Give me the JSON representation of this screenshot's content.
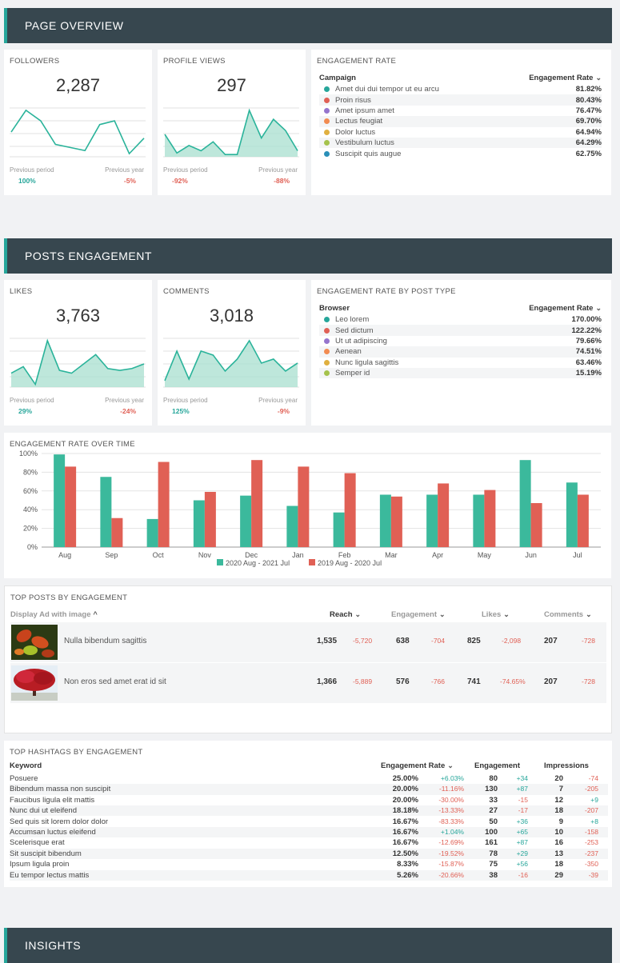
{
  "sections": {
    "page_overview": "PAGE OVERVIEW",
    "posts_engagement": "POSTS ENGAGEMENT",
    "insights": "INSIGHTS"
  },
  "followers": {
    "title": "FOLLOWERS",
    "value": "2,287",
    "prev_label": "Previous period",
    "prev_value": "100%",
    "year_label": "Previous year",
    "year_value": "-5%",
    "series": [
      40,
      75,
      58,
      20,
      15,
      10,
      52,
      58,
      5,
      30
    ]
  },
  "profile_views": {
    "title": "PROFILE VIEWS",
    "value": "297",
    "prev_label": "Previous period",
    "prev_value": "-92%",
    "year_label": "Previous year",
    "year_value": "-88%",
    "series": [
      30,
      5,
      15,
      8,
      20,
      3,
      3,
      62,
      25,
      50,
      35,
      8
    ]
  },
  "engagement_rate": {
    "title": "ENGAGEMENT RATE",
    "col1": "Campaign",
    "col2": "Engagement Rate",
    "rows": [
      {
        "name": "Amet dui dui tempor ut eu arcu",
        "value": "81.82%",
        "color": "#26a69a"
      },
      {
        "name": "Proin risus",
        "value": "80.43%",
        "color": "#e06055"
      },
      {
        "name": "Amet ipsum amet",
        "value": "76.47%",
        "color": "#9575cd"
      },
      {
        "name": "Lectus feugiat",
        "value": "69.70%",
        "color": "#f28b50"
      },
      {
        "name": "Dolor luctus",
        "value": "64.94%",
        "color": "#e0b040"
      },
      {
        "name": "Vestibulum luctus",
        "value": "64.29%",
        "color": "#a5c24c"
      },
      {
        "name": "Suscipit quis augue",
        "value": "62.75%",
        "color": "#2a8fb8"
      }
    ]
  },
  "likes": {
    "title": "LIKES",
    "value": "3,763",
    "prev_label": "Previous period",
    "prev_value": "29%",
    "year_label": "Previous year",
    "year_value": "-24%",
    "series": [
      15,
      22,
      3,
      50,
      18,
      15,
      25,
      35,
      20,
      18,
      20,
      25
    ]
  },
  "comments": {
    "title": "COMMENTS",
    "value": "3,018",
    "prev_label": "Previous period",
    "prev_value": "125%",
    "year_label": "Previous year",
    "year_value": "-9%",
    "series": [
      8,
      45,
      10,
      45,
      40,
      20,
      35,
      58,
      30,
      35,
      20,
      30
    ]
  },
  "engagement_by_type": {
    "title": "ENGAGEMENT RATE BY POST TYPE",
    "col1": "Browser",
    "col2": "Engagement Rate",
    "rows": [
      {
        "name": "Leo lorem",
        "value": "170.00%",
        "color": "#26a69a"
      },
      {
        "name": "Sed dictum",
        "value": "122.22%",
        "color": "#e06055"
      },
      {
        "name": "Ut ut adipiscing",
        "value": "79.66%",
        "color": "#9575cd"
      },
      {
        "name": "Aenean",
        "value": "74.51%",
        "color": "#f28b50"
      },
      {
        "name": "Nunc ligula sagittis",
        "value": "63.46%",
        "color": "#e0b040"
      },
      {
        "name": "Semper id",
        "value": "15.19%",
        "color": "#a5c24c"
      }
    ]
  },
  "chart_data": {
    "type": "bar",
    "title": "ENGAGEMENT RATE OVER TIME",
    "categories": [
      "Aug",
      "Sep",
      "Oct",
      "Nov",
      "Dec",
      "Jan",
      "Feb",
      "Mar",
      "Apr",
      "May",
      "Jun",
      "Jul"
    ],
    "series": [
      {
        "name": "2020 Aug - 2021 Jul",
        "color": "#3bb99c",
        "values": [
          99,
          75,
          30,
          50,
          55,
          44,
          37,
          56,
          56,
          56,
          93,
          69
        ]
      },
      {
        "name": "2019 Aug - 2020 Jul",
        "color": "#e06055",
        "values": [
          86,
          31,
          91,
          59,
          93,
          86,
          79,
          54,
          68,
          61,
          47,
          56
        ]
      }
    ],
    "yticks": [
      "0%",
      "20%",
      "40%",
      "60%",
      "80%",
      "100%"
    ],
    "ylim": [
      0,
      100
    ]
  },
  "top_posts": {
    "title": "TOP POSTS BY ENGAGEMENT",
    "col_post": "Display Ad with image",
    "col_reach": "Reach",
    "col_eng": "Engagement",
    "col_likes": "Likes",
    "col_comments": "Comments",
    "rows": [
      {
        "text": "Nulla bibendum sagittis",
        "reach": "1,535",
        "reach_d": "-5,720",
        "eng": "638",
        "eng_d": "-704",
        "likes": "825",
        "likes_d": "-2,098",
        "comments": "207",
        "comments_d": "-728"
      },
      {
        "text": "Non eros sed amet erat id sit",
        "reach": "1,366",
        "reach_d": "-5,889",
        "eng": "576",
        "eng_d": "-766",
        "likes": "741",
        "likes_d": "-74.65%",
        "comments": "207",
        "comments_d": "-728"
      }
    ]
  },
  "top_hashtags": {
    "title": "TOP HASHTAGS BY ENGAGEMENT",
    "col_kw": "Keyword",
    "col_rate": "Engagement Rate",
    "col_eng": "Engagement",
    "col_imp": "Impressions",
    "rows": [
      {
        "kw": "Posuere",
        "rate": "25.00%",
        "rate_d": "+6.03%",
        "eng": "80",
        "eng_d": "+34",
        "imp": "20",
        "imp_d": "-74"
      },
      {
        "kw": "Bibendum massa non suscipit",
        "rate": "20.00%",
        "rate_d": "-11.16%",
        "eng": "130",
        "eng_d": "+87",
        "imp": "7",
        "imp_d": "-205"
      },
      {
        "kw": "Faucibus ligula elit mattis",
        "rate": "20.00%",
        "rate_d": "-30.00%",
        "eng": "33",
        "eng_d": "-15",
        "imp": "12",
        "imp_d": "+9"
      },
      {
        "kw": "Nunc dui ut eleifend",
        "rate": "18.18%",
        "rate_d": "-13.33%",
        "eng": "27",
        "eng_d": "-17",
        "imp": "18",
        "imp_d": "-207"
      },
      {
        "kw": "Sed quis sit lorem dolor dolor",
        "rate": "16.67%",
        "rate_d": "-83.33%",
        "eng": "50",
        "eng_d": "+36",
        "imp": "9",
        "imp_d": "+8"
      },
      {
        "kw": "Accumsan luctus eleifend",
        "rate": "16.67%",
        "rate_d": "+1.04%",
        "eng": "100",
        "eng_d": "+65",
        "imp": "10",
        "imp_d": "-158"
      },
      {
        "kw": "Scelerisque erat",
        "rate": "16.67%",
        "rate_d": "-12.69%",
        "eng": "161",
        "eng_d": "+87",
        "imp": "16",
        "imp_d": "-253"
      },
      {
        "kw": "Sit suscipit bibendum",
        "rate": "12.50%",
        "rate_d": "-19.52%",
        "eng": "78",
        "eng_d": "+29",
        "imp": "13",
        "imp_d": "-237"
      },
      {
        "kw": "Ipsum ligula proin",
        "rate": "8.33%",
        "rate_d": "-15.87%",
        "eng": "75",
        "eng_d": "+56",
        "imp": "18",
        "imp_d": "-350"
      },
      {
        "kw": "Eu tempor lectus mattis",
        "rate": "5.26%",
        "rate_d": "-20.66%",
        "eng": "38",
        "eng_d": "-16",
        "imp": "29",
        "imp_d": "-39"
      }
    ]
  }
}
